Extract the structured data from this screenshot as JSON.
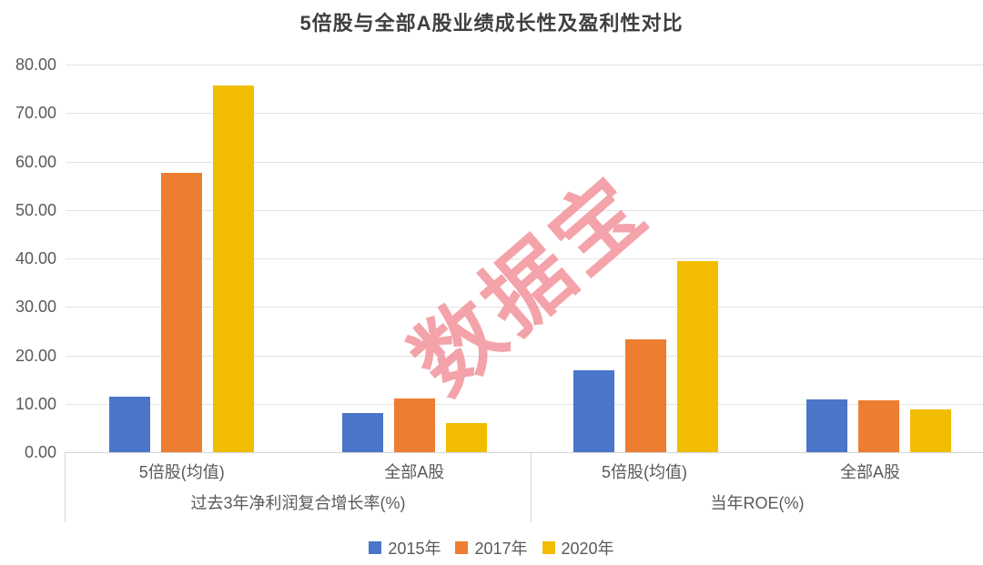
{
  "title": "5倍股与全部A股业绩成长性及盈利性对比",
  "watermark": "数据宝",
  "colors": {
    "series_2015": "#4A75C9",
    "series_2017": "#ED7D31",
    "series_2020": "#F2BD00",
    "watermark_pink": "#F1939B",
    "gridline": "#E3E3E3",
    "axis_border": "#D6D6D6",
    "text_gray": "#595959",
    "title_gray": "#3F3F3F"
  },
  "chart_data": {
    "type": "bar",
    "title": "5倍股与全部A股业绩成长性及盈利性对比",
    "groups": [
      {
        "label": "过去3年净利润复合增长率(%)",
        "categories": [
          "5倍股(均值)",
          "全部A股"
        ]
      },
      {
        "label": "当年ROE(%)",
        "categories": [
          "5倍股(均值)",
          "全部A股"
        ]
      }
    ],
    "clusters": [
      "过去3年净利润复合增长率(%)·5倍股(均值)",
      "过去3年净利润复合增长率(%)·全部A股",
      "当年ROE(%)·5倍股(均值)",
      "当年ROE(%)·全部A股"
    ],
    "series": [
      {
        "name": "2015年",
        "color": "#4A75C9",
        "values": [
          11.4,
          8.1,
          17.0,
          10.9
        ]
      },
      {
        "name": "2017年",
        "color": "#ED7D31",
        "values": [
          57.7,
          11.1,
          23.3,
          10.7
        ]
      },
      {
        "name": "2020年",
        "color": "#F2BD00",
        "values": [
          75.7,
          6.0,
          39.4,
          8.9
        ]
      }
    ],
    "ylim": [
      0,
      80
    ],
    "yticks": [
      "80.00",
      "70.00",
      "60.00",
      "50.00",
      "40.00",
      "30.00",
      "20.00",
      "10.00",
      "0.00"
    ],
    "xlabel": "",
    "ylabel": "",
    "grid": true,
    "legend_position": "bottom"
  }
}
